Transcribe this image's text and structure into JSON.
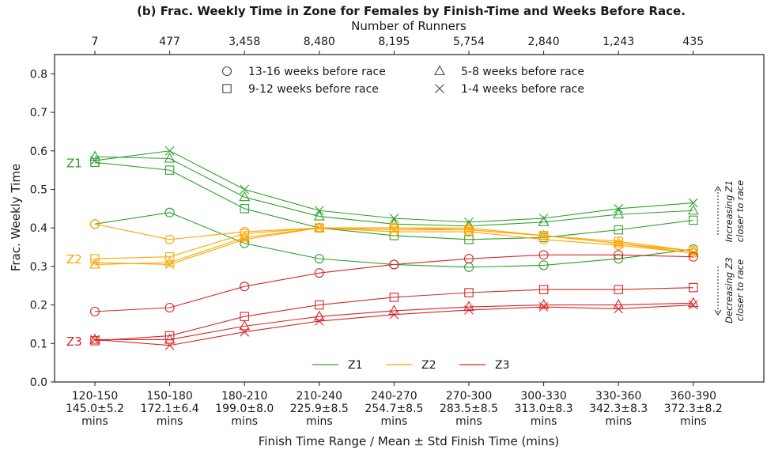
{
  "chart_data": {
    "type": "line",
    "title": "(b) Frac. Weekly Time in Zone for Females by Finish-Time and Weeks Before Race.",
    "xlabel": "Finish Time Range / Mean ± Std Finish Time (mins)",
    "ylabel": "Frac. Weekly Time",
    "top_axis_label": "Number of Runners",
    "top_ticks": [
      "7",
      "477",
      "3,458",
      "8,480",
      "8,195",
      "5,754",
      "2,840",
      "1,243",
      "435"
    ],
    "categories": [
      [
        "120-150",
        "145.0±5.2",
        "mins"
      ],
      [
        "150-180",
        "172.1±6.4",
        "mins"
      ],
      [
        "180-210",
        "199.0±8.0",
        "mins"
      ],
      [
        "210-240",
        "225.9±8.5",
        "mins"
      ],
      [
        "240-270",
        "254.7±8.5",
        "mins"
      ],
      [
        "270-300",
        "283.5±8.5",
        "mins"
      ],
      [
        "300-330",
        "313.0±8.3",
        "mins"
      ],
      [
        "330-360",
        "342.3±8.3",
        "mins"
      ],
      [
        "360-390",
        "372.3±8.2",
        "mins"
      ]
    ],
    "ylim": [
      0,
      0.85
    ],
    "yticks": [
      "0.0",
      "0.1",
      "0.2",
      "0.3",
      "0.4",
      "0.5",
      "0.6",
      "0.7",
      "0.8"
    ],
    "grid": false,
    "zones": [
      {
        "name": "Z1",
        "color": "#2ca02c"
      },
      {
        "name": "Z2",
        "color": "#ffa500"
      },
      {
        "name": "Z3",
        "color": "#d62728"
      }
    ],
    "marker_legend": [
      {
        "marker": "circle",
        "label": "13-16 weeks before race"
      },
      {
        "marker": "triangle",
        "label": "5-8 weeks before race"
      },
      {
        "marker": "square",
        "label": "9-12 weeks before race"
      },
      {
        "marker": "x",
        "label": "1-4 weeks before race"
      }
    ],
    "zone_legend_placement": "bottom-center",
    "marker_legend_placement": "top-center",
    "series": [
      {
        "zone": "Z1",
        "period": "13-16 weeks before race",
        "marker": "circle",
        "values": [
          0.41,
          0.44,
          0.36,
          0.32,
          0.305,
          0.298,
          0.303,
          0.32,
          0.345
        ]
      },
      {
        "zone": "Z1",
        "period": "9-12 weeks before race",
        "marker": "square",
        "values": [
          0.57,
          0.55,
          0.45,
          0.4,
          0.38,
          0.37,
          0.375,
          0.395,
          0.42
        ]
      },
      {
        "zone": "Z1",
        "period": "5-8 weeks before race",
        "marker": "triangle",
        "values": [
          0.585,
          0.58,
          0.48,
          0.43,
          0.41,
          0.405,
          0.415,
          0.435,
          0.445
        ]
      },
      {
        "zone": "Z1",
        "period": "1-4 weeks before race",
        "marker": "x",
        "values": [
          0.575,
          0.6,
          0.5,
          0.445,
          0.425,
          0.415,
          0.425,
          0.45,
          0.465
        ]
      },
      {
        "zone": "Z2",
        "period": "13-16 weeks before race",
        "marker": "circle",
        "values": [
          0.41,
          0.37,
          0.39,
          0.4,
          0.39,
          0.39,
          0.37,
          0.355,
          0.335
        ]
      },
      {
        "zone": "Z2",
        "period": "9-12 weeks before race",
        "marker": "square",
        "values": [
          0.32,
          0.325,
          0.385,
          0.4,
          0.4,
          0.395,
          0.38,
          0.365,
          0.34
        ]
      },
      {
        "zone": "Z2",
        "period": "5-8 weeks before race",
        "marker": "triangle",
        "values": [
          0.305,
          0.31,
          0.375,
          0.4,
          0.4,
          0.4,
          0.38,
          0.36,
          0.34
        ]
      },
      {
        "zone": "Z2",
        "period": "1-4 weeks before race",
        "marker": "x",
        "values": [
          0.31,
          0.305,
          0.37,
          0.4,
          0.395,
          0.395,
          0.38,
          0.36,
          0.335
        ]
      },
      {
        "zone": "Z3",
        "period": "13-16 weeks before race",
        "marker": "circle",
        "values": [
          0.183,
          0.193,
          0.248,
          0.283,
          0.305,
          0.32,
          0.33,
          0.33,
          0.325
        ]
      },
      {
        "zone": "Z3",
        "period": "9-12 weeks before race",
        "marker": "square",
        "values": [
          0.107,
          0.12,
          0.17,
          0.2,
          0.22,
          0.232,
          0.24,
          0.24,
          0.245
        ]
      },
      {
        "zone": "Z3",
        "period": "5-8 weeks before race",
        "marker": "triangle",
        "values": [
          0.11,
          0.11,
          0.145,
          0.17,
          0.185,
          0.195,
          0.2,
          0.2,
          0.205
        ]
      },
      {
        "zone": "Z3",
        "period": "1-4 weeks before race",
        "marker": "x",
        "values": [
          0.11,
          0.095,
          0.13,
          0.158,
          0.175,
          0.187,
          0.195,
          0.19,
          0.2
        ]
      }
    ],
    "annotations": [
      {
        "lines": [
          "Increasing Z1",
          "closer to race"
        ],
        "direction": "up"
      },
      {
        "lines": [
          "Decreasing Z3",
          "closer to race"
        ],
        "direction": "down"
      }
    ]
  }
}
